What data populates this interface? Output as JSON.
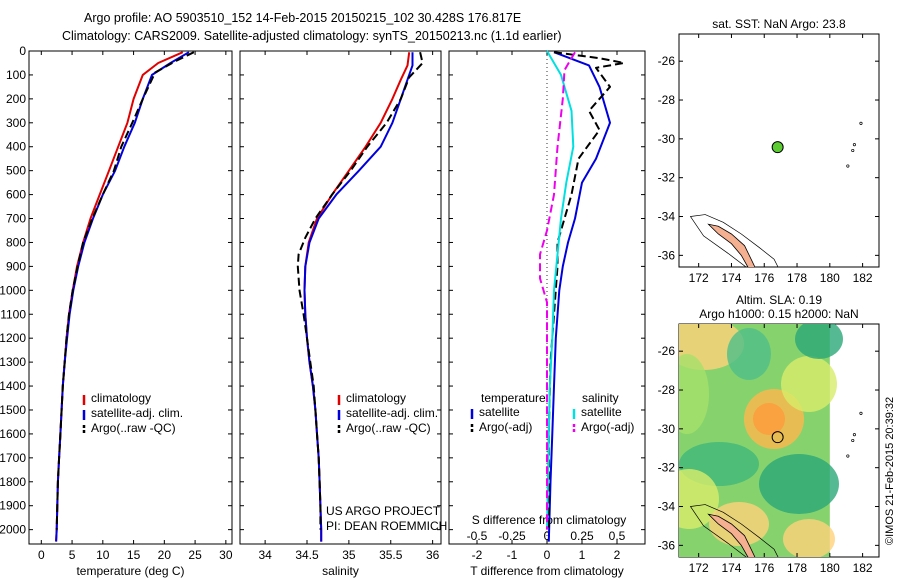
{
  "header": {
    "line1": "Argo profile: AO 5903510_152 14-Feb-2015 20150215_102 30.428S 176.817E",
    "line2": "Climatology: CARS2009. Satellite-adjusted climatology: synTS_20150213.nc (1.1d earlier)"
  },
  "depth_ticks": [
    "0",
    "100",
    "200",
    "300",
    "400",
    "500",
    "600",
    "700",
    "800",
    "900",
    "1000",
    "1100",
    "1200",
    "1300",
    "1400",
    "1500",
    "1600",
    "1700",
    "1800",
    "1900",
    "2000"
  ],
  "credit": {
    "project": "US ARGO PROJECT",
    "pi": "PI: DEAN ROEMMICH"
  },
  "footer_right": "©IMOS 21-Feb-2015 20:39:32",
  "colors": {
    "climatology": "#e00000",
    "satellite": "#0000dd",
    "argo": "#000000",
    "cyan": "#00e0e0",
    "magenta": "#ee00ee",
    "land": "#f4b090",
    "marker": "#5ccc33"
  },
  "chart_data": [
    {
      "type": "line",
      "id": "temperature",
      "xlabel": "temperature (deg C)",
      "ylabel": "",
      "xlim": [
        -2,
        31
      ],
      "ylim": [
        2060,
        0
      ],
      "xticks": [
        0,
        5,
        10,
        15,
        20,
        25,
        30
      ],
      "xticklabels": [
        "0",
        "5",
        "10",
        "15",
        "20",
        "25",
        "30"
      ],
      "legend": [
        "climatology",
        "satellite-adj. clim.",
        "Argo(..raw -QC)"
      ],
      "legend_position": "lower-middle",
      "series": [
        {
          "name": "climatology",
          "color": "#e00000",
          "dash": "none",
          "points": [
            [
              23,
              5
            ],
            [
              19,
              50
            ],
            [
              16.5,
              100
            ],
            [
              15,
              200
            ],
            [
              14,
              300
            ],
            [
              12.5,
              400
            ],
            [
              11,
              500
            ],
            [
              9.5,
              600
            ],
            [
              8,
              700
            ],
            [
              6.8,
              800
            ],
            [
              5.8,
              900
            ],
            [
              5.1,
              1000
            ],
            [
              4.5,
              1100
            ],
            [
              4.1,
              1200
            ],
            [
              3.8,
              1300
            ],
            [
              3.5,
              1400
            ],
            [
              3.3,
              1500
            ],
            [
              3.1,
              1600
            ],
            [
              2.9,
              1700
            ],
            [
              2.7,
              1800
            ],
            [
              2.6,
              1900
            ],
            [
              2.5,
              2000
            ],
            [
              2.4,
              2050
            ]
          ]
        },
        {
          "name": "satellite-adj. clim.",
          "color": "#0000dd",
          "dash": "none",
          "points": [
            [
              24,
              5
            ],
            [
              21,
              50
            ],
            [
              18,
              100
            ],
            [
              16.5,
              200
            ],
            [
              15.2,
              300
            ],
            [
              13.5,
              400
            ],
            [
              12,
              500
            ],
            [
              10,
              600
            ],
            [
              8.4,
              700
            ],
            [
              7,
              800
            ],
            [
              6,
              900
            ],
            [
              5.2,
              1000
            ],
            [
              4.6,
              1100
            ],
            [
              4.2,
              1200
            ],
            [
              3.8,
              1300
            ],
            [
              3.5,
              1400
            ],
            [
              3.3,
              1500
            ],
            [
              3.1,
              1600
            ],
            [
              2.9,
              1700
            ],
            [
              2.7,
              1800
            ],
            [
              2.6,
              1900
            ],
            [
              2.5,
              2000
            ],
            [
              2.4,
              2050
            ]
          ]
        },
        {
          "name": "Argo(..raw -QC)",
          "color": "#000000",
          "dash": "8,4",
          "points": [
            [
              24.8,
              5
            ],
            [
              22,
              40
            ],
            [
              18.5,
              90
            ],
            [
              16.5,
              200
            ],
            [
              14.8,
              300
            ],
            [
              13,
              400
            ],
            [
              11.8,
              500
            ],
            [
              10,
              600
            ],
            [
              8.3,
              700
            ],
            [
              6.8,
              800
            ],
            [
              5.9,
              900
            ],
            [
              5.1,
              1000
            ],
            [
              4.5,
              1100
            ],
            [
              4.1,
              1200
            ],
            [
              3.8,
              1300
            ],
            [
              3.5,
              1400
            ],
            [
              3.3,
              1500
            ],
            [
              3.1,
              1600
            ],
            [
              2.9,
              1700
            ],
            [
              2.7,
              1800
            ],
            [
              2.6,
              1900
            ],
            [
              2.5,
              2000
            ]
          ]
        }
      ]
    },
    {
      "type": "line",
      "id": "salinity",
      "xlabel": "salinity",
      "ylabel": "",
      "xlim": [
        33.7,
        36.1
      ],
      "ylim": [
        2060,
        0
      ],
      "xticks": [
        34,
        34.5,
        35,
        35.5,
        36
      ],
      "xticklabels": [
        "34",
        "34.5",
        "35",
        "35.5",
        "36"
      ],
      "legend": [
        "climatology",
        "satellite-adj. clim.",
        "Argo(..raw -QC)"
      ],
      "legend_position": "lower-middle",
      "series": [
        {
          "name": "climatology",
          "color": "#e00000",
          "dash": "none",
          "points": [
            [
              35.72,
              5
            ],
            [
              35.7,
              60
            ],
            [
              35.62,
              120
            ],
            [
              35.52,
              200
            ],
            [
              35.38,
              300
            ],
            [
              35.2,
              400
            ],
            [
              35,
              500
            ],
            [
              34.8,
              600
            ],
            [
              34.62,
              700
            ],
            [
              34.52,
              800
            ],
            [
              34.48,
              900
            ],
            [
              34.47,
              1000
            ],
            [
              34.48,
              1100
            ],
            [
              34.5,
              1200
            ],
            [
              34.53,
              1300
            ],
            [
              34.57,
              1400
            ],
            [
              34.6,
              1500
            ],
            [
              34.62,
              1600
            ],
            [
              34.64,
              1700
            ],
            [
              34.65,
              1800
            ],
            [
              34.66,
              1900
            ],
            [
              34.67,
              2000
            ],
            [
              34.67,
              2050
            ]
          ]
        },
        {
          "name": "satellite-adj. clim.",
          "color": "#0000dd",
          "dash": "none",
          "points": [
            [
              35.76,
              5
            ],
            [
              35.76,
              60
            ],
            [
              35.7,
              120
            ],
            [
              35.62,
              200
            ],
            [
              35.52,
              300
            ],
            [
              35.38,
              400
            ],
            [
              35.12,
              500
            ],
            [
              34.85,
              600
            ],
            [
              34.64,
              700
            ],
            [
              34.53,
              800
            ],
            [
              34.48,
              900
            ],
            [
              34.47,
              1000
            ],
            [
              34.48,
              1100
            ],
            [
              34.5,
              1200
            ],
            [
              34.53,
              1300
            ],
            [
              34.57,
              1400
            ],
            [
              34.6,
              1500
            ],
            [
              34.62,
              1600
            ],
            [
              34.64,
              1700
            ],
            [
              34.65,
              1800
            ],
            [
              34.66,
              1900
            ],
            [
              34.67,
              2000
            ],
            [
              34.67,
              2050
            ]
          ]
        },
        {
          "name": "Argo(..raw -QC)",
          "color": "#000000",
          "dash": "8,4",
          "points": [
            [
              35.85,
              5
            ],
            [
              35.88,
              50
            ],
            [
              35.72,
              110
            ],
            [
              35.62,
              200
            ],
            [
              35.45,
              300
            ],
            [
              35.22,
              400
            ],
            [
              35.02,
              500
            ],
            [
              34.8,
              600
            ],
            [
              34.6,
              700
            ],
            [
              34.48,
              780
            ],
            [
              34.4,
              850
            ],
            [
              34.39,
              900
            ],
            [
              34.41,
              1000
            ],
            [
              34.46,
              1100
            ],
            [
              34.5,
              1200
            ],
            [
              34.54,
              1300
            ],
            [
              34.58,
              1400
            ],
            [
              34.6,
              1500
            ],
            [
              34.62,
              1600
            ],
            [
              34.64,
              1700
            ],
            [
              34.65,
              1800
            ],
            [
              34.66,
              1900
            ],
            [
              34.66,
              2000
            ]
          ]
        }
      ]
    },
    {
      "type": "line",
      "id": "difference",
      "xlabel": "T difference from climatology",
      "xlabel_top": "S difference from climatology",
      "ylabel": "",
      "xlim": [
        -2.8,
        2.8
      ],
      "ylim": [
        2060,
        0
      ],
      "xticks": [
        -2,
        -1,
        0,
        1,
        2
      ],
      "xticklabels": [
        "-2",
        "-1",
        "0",
        "1",
        "2"
      ],
      "xticks_top": [
        -2,
        -1,
        0,
        1,
        2
      ],
      "xticklabels_top": [
        "-0.5",
        "-0.25",
        "0",
        "0.25",
        "0.5"
      ],
      "legend_headers": [
        "temperature",
        "salinity"
      ],
      "legend": [
        "satellite",
        "Argo(-adj)",
        "satellite",
        "Argo(-adj)"
      ],
      "legend_position": "lower-middle",
      "series": [
        {
          "name": "satellite",
          "color": "#0000dd",
          "dash": "none",
          "points": [
            [
              0.2,
              5
            ],
            [
              1.2,
              60
            ],
            [
              1.5,
              150
            ],
            [
              1.8,
              300
            ],
            [
              1.4,
              450
            ],
            [
              1,
              550
            ],
            [
              0.8,
              700
            ],
            [
              0.6,
              800
            ],
            [
              0.45,
              900
            ],
            [
              0.35,
              1000
            ],
            [
              0.25,
              1200
            ],
            [
              0.2,
              1400
            ],
            [
              0.15,
              1600
            ],
            [
              0.1,
              1800
            ],
            [
              0.05,
              2050
            ]
          ]
        },
        {
          "name": "Argo(-adj)",
          "color": "#000000",
          "dash": "8,4",
          "points": [
            [
              0.2,
              5
            ],
            [
              1.5,
              30
            ],
            [
              2.2,
              50
            ],
            [
              1.4,
              70
            ],
            [
              1.8,
              150
            ],
            [
              1.2,
              250
            ],
            [
              1.5,
              330
            ],
            [
              0.9,
              450
            ],
            [
              0.7,
              600
            ],
            [
              0.5,
              700
            ],
            [
              0.3,
              800
            ],
            [
              0.3,
              900
            ],
            [
              0.2,
              1100
            ],
            [
              0.1,
              1300
            ],
            [
              0.05,
              1600
            ],
            [
              0.05,
              2000
            ]
          ]
        },
        {
          "name": "satellite",
          "color": "#00e0e0",
          "dash": "none",
          "points": [
            [
              0,
              0
            ],
            [
              0.4,
              100
            ],
            [
              0.7,
              250
            ],
            [
              0.75,
              400
            ],
            [
              0.55,
              550
            ],
            [
              0.4,
              700
            ],
            [
              0.3,
              850
            ],
            [
              0.2,
              1000
            ],
            [
              0.15,
              1200
            ],
            [
              0.08,
              1400
            ],
            [
              0.05,
              1600
            ],
            [
              0,
              2000
            ]
          ]
        },
        {
          "name": "Argo(-adj)",
          "color": "#ee00ee",
          "dash": "8,4",
          "points": [
            [
              0.8,
              5
            ],
            [
              0.5,
              80
            ],
            [
              0.45,
              200
            ],
            [
              0.3,
              400
            ],
            [
              0.2,
              600
            ],
            [
              0,
              750
            ],
            [
              -0.2,
              850
            ],
            [
              -0.2,
              950
            ],
            [
              0,
              1050
            ],
            [
              0,
              1200
            ],
            [
              0,
              1400
            ],
            [
              0,
              2000
            ]
          ]
        }
      ]
    },
    {
      "type": "scatter",
      "id": "map-sst",
      "title": "sat. SST: NaN Argo: 23.8",
      "xlim": [
        170.8,
        183
      ],
      "ylim": [
        -36.6,
        -24.6
      ],
      "xticks": [
        172,
        174,
        176,
        178,
        180,
        182
      ],
      "xticklabels": [
        "172",
        "174",
        "176",
        "178",
        "180",
        "182"
      ],
      "yticks": [
        -26,
        -28,
        -30,
        -32,
        -34,
        -36
      ],
      "yticklabels": [
        "-26",
        "-28",
        "-30",
        "-32",
        "-34",
        "-36"
      ],
      "points": [
        [
          176.817,
          -30.428
        ]
      ]
    },
    {
      "type": "heatmap",
      "id": "map-sla",
      "title": "Altim. SLA: 0.19",
      "subtitle": "Argo h1000: 0.15 h2000: NaN",
      "xlim": [
        170.8,
        183
      ],
      "ylim": [
        -36.6,
        -24.6
      ],
      "xticks": [
        172,
        174,
        176,
        178,
        180,
        182
      ],
      "xticklabels": [
        "172",
        "174",
        "176",
        "178",
        "180",
        "182"
      ],
      "yticks": [
        -26,
        -28,
        -30,
        -32,
        -34,
        -36
      ],
      "yticklabels": [
        "-26",
        "-28",
        "-30",
        "-32",
        "-34",
        "-36"
      ],
      "points": [
        [
          176.817,
          -30.428
        ]
      ]
    }
  ]
}
